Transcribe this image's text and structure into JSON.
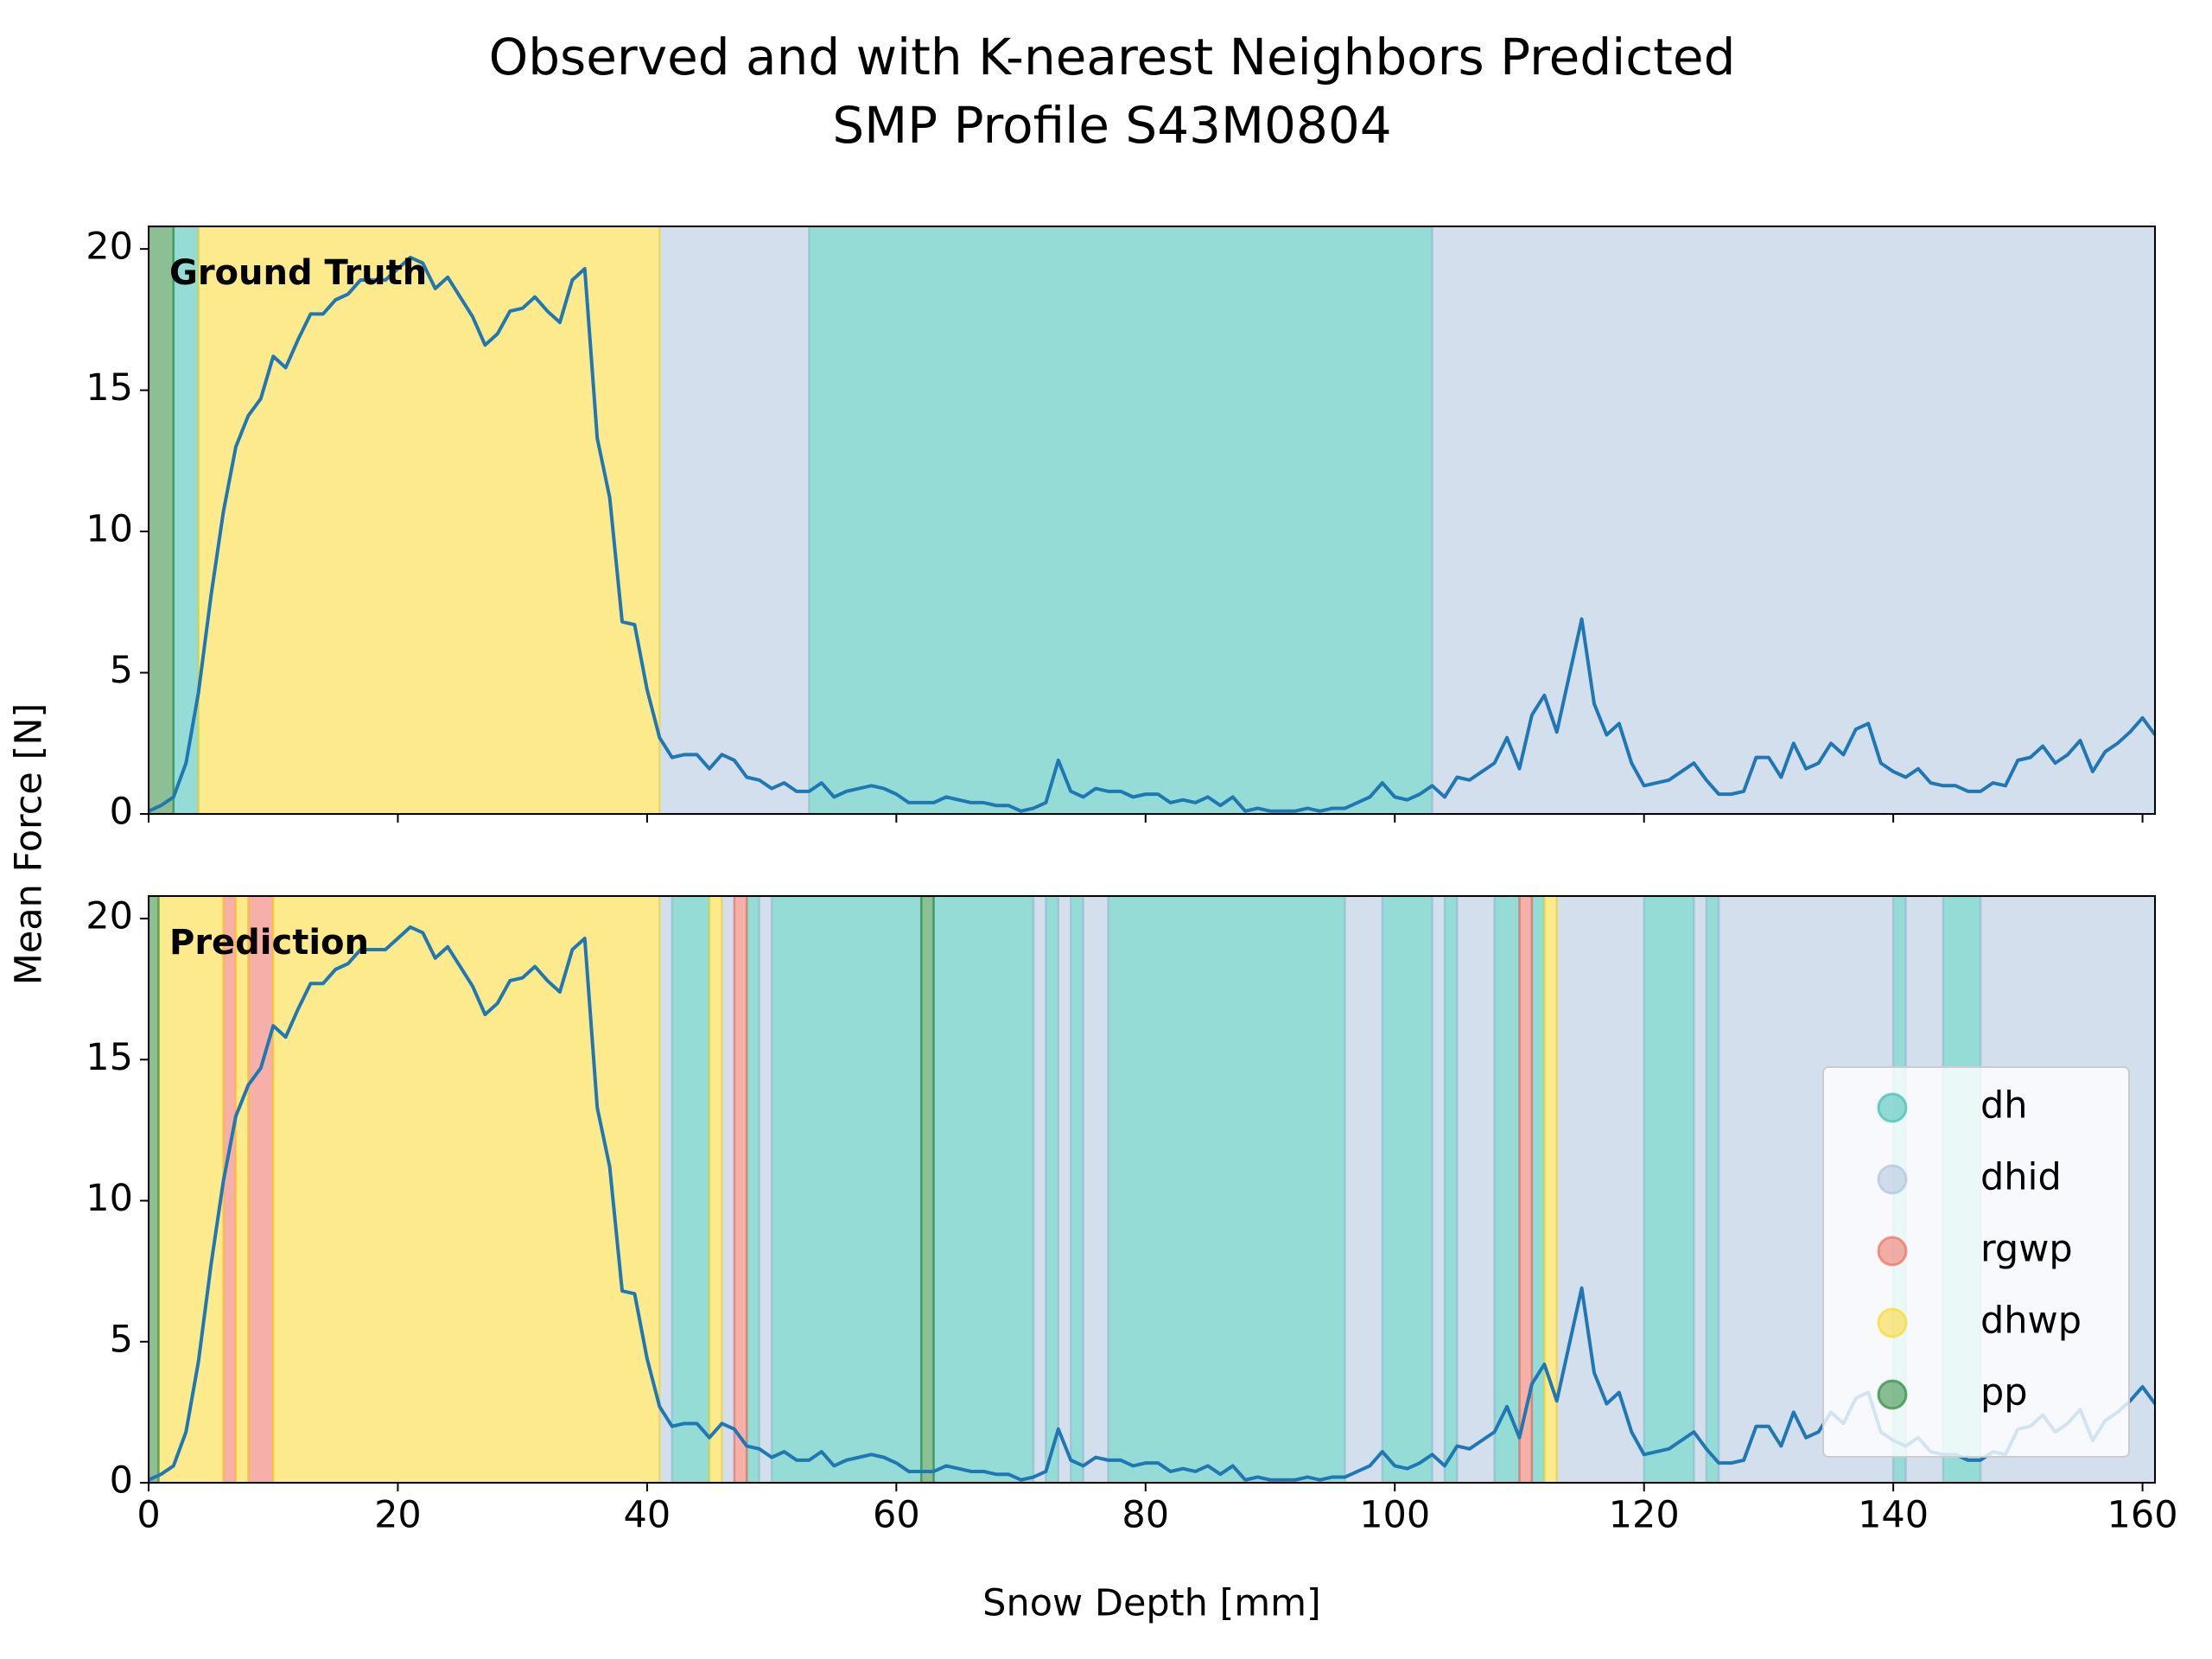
{
  "chart_data": {
    "type": "line",
    "title": [
      "Observed and with K-nearest Neighbors Predicted",
      "SMP Profile S43M0804"
    ],
    "xlabel": "Snow Depth [mm]",
    "ylabel": "Mean Force [N]",
    "xlim": [
      0,
      161
    ],
    "xticks": [
      0,
      20,
      40,
      60,
      80,
      100,
      120,
      140,
      160
    ],
    "ylim": [
      0,
      20.8
    ],
    "yticks": [
      0,
      5,
      10,
      15,
      20
    ],
    "x": [
      0,
      1,
      2,
      3,
      4,
      5,
      6,
      7,
      8,
      9,
      10,
      11,
      12,
      13,
      14,
      15,
      16,
      17,
      18,
      19,
      20,
      21,
      22,
      23,
      24,
      25,
      26,
      27,
      28,
      29,
      30,
      31,
      32,
      33,
      34,
      35,
      36,
      37,
      38,
      39,
      40,
      41,
      42,
      43,
      44,
      45,
      46,
      47,
      48,
      49,
      50,
      51,
      52,
      53,
      54,
      55,
      56,
      57,
      58,
      59,
      60,
      61,
      62,
      63,
      64,
      65,
      66,
      67,
      68,
      69,
      70,
      71,
      72,
      73,
      74,
      75,
      76,
      77,
      78,
      79,
      80,
      81,
      82,
      83,
      84,
      85,
      86,
      87,
      88,
      89,
      90,
      91,
      92,
      93,
      94,
      95,
      96,
      97,
      98,
      99,
      100,
      101,
      102,
      103,
      104,
      105,
      106,
      107,
      108,
      109,
      110,
      111,
      112,
      113,
      114,
      115,
      116,
      117,
      118,
      119,
      120,
      121,
      122,
      123,
      124,
      125,
      126,
      127,
      128,
      129,
      130,
      131,
      132,
      133,
      134,
      135,
      136,
      137,
      138,
      139,
      140,
      141,
      142,
      143,
      144,
      145,
      146,
      147,
      148,
      149,
      150,
      151,
      152,
      153,
      154,
      155,
      156,
      157,
      158,
      159,
      160,
      161
    ],
    "series": [
      {
        "color": "#1f77b4",
        "values": [
          0.1,
          0.3,
          0.6,
          1.8,
          4.3,
          7.7,
          10.7,
          13.0,
          14.1,
          14.7,
          16.2,
          15.8,
          16.8,
          17.7,
          17.7,
          18.2,
          18.4,
          18.9,
          18.9,
          18.9,
          19.3,
          19.7,
          19.5,
          18.6,
          19.0,
          18.3,
          17.6,
          16.6,
          17.0,
          17.8,
          17.9,
          18.3,
          17.8,
          17.4,
          18.9,
          19.3,
          13.3,
          11.2,
          6.8,
          6.7,
          4.4,
          2.7,
          2.0,
          2.1,
          2.1,
          1.6,
          2.1,
          1.9,
          1.3,
          1.2,
          0.9,
          1.1,
          0.8,
          0.8,
          1.1,
          0.6,
          0.8,
          0.9,
          1.0,
          0.9,
          0.7,
          0.4,
          0.4,
          0.4,
          0.6,
          0.5,
          0.4,
          0.4,
          0.3,
          0.3,
          0.1,
          0.2,
          0.4,
          1.9,
          0.8,
          0.6,
          0.9,
          0.8,
          0.8,
          0.6,
          0.7,
          0.7,
          0.4,
          0.5,
          0.4,
          0.6,
          0.3,
          0.6,
          0.1,
          0.2,
          0.1,
          0.1,
          0.1,
          0.2,
          0.1,
          0.2,
          0.2,
          0.4,
          0.6,
          1.1,
          0.6,
          0.5,
          0.7,
          1.0,
          0.6,
          1.3,
          1.2,
          1.5,
          1.8,
          2.7,
          1.6,
          3.5,
          4.2,
          2.9,
          4.9,
          6.9,
          3.9,
          2.8,
          3.2,
          1.8,
          1.0,
          1.1,
          1.2,
          1.5,
          1.8,
          1.2,
          0.7,
          0.7,
          0.8,
          2.0,
          2.0,
          1.3,
          2.5,
          1.6,
          1.8,
          2.5,
          2.1,
          3.0,
          3.2,
          1.8,
          1.5,
          1.3,
          1.6,
          1.1,
          1.0,
          1.0,
          0.8,
          0.8,
          1.1,
          1.0,
          1.9,
          2.0,
          2.4,
          1.8,
          2.1,
          2.6,
          1.5,
          2.2,
          2.5,
          2.9,
          3.4,
          2.8
        ]
      }
    ],
    "classes": [
      {
        "name": "dh",
        "color": "#40c0b4"
      },
      {
        "name": "dhid",
        "color": "#b0c4de"
      },
      {
        "name": "rgwp",
        "color": "#f0705f"
      },
      {
        "name": "dhwp",
        "color": "#fcd82e"
      },
      {
        "name": "pp",
        "color": "#2e8b3c"
      }
    ],
    "legend": "lower right",
    "panels": [
      {
        "label": "Ground Truth",
        "legend": false,
        "spans": [
          [
            [
              2,
              4
            ],
            [
              53,
              103
            ]
          ],
          [
            [
              41,
              53
            ],
            [
              103,
              161
            ]
          ],
          [],
          [
            [
              4,
              41
            ]
          ],
          [
            [
              0,
              2
            ]
          ]
        ]
      },
      {
        "label": "Prediction",
        "legend": true,
        "spans": [
          [
            [
              42,
              45
            ],
            [
              48,
              49
            ],
            [
              50,
              62
            ],
            [
              63,
              71
            ],
            [
              72,
              73
            ],
            [
              74,
              75
            ],
            [
              77,
              96
            ],
            [
              99,
              103
            ],
            [
              104,
              105
            ],
            [
              108,
              110
            ],
            [
              111,
              112
            ],
            [
              120,
              124
            ],
            [
              125,
              126
            ],
            [
              140,
              141
            ],
            [
              144,
              147
            ]
          ],
          [
            [
              41,
              42
            ],
            [
              46,
              47
            ],
            [
              49,
              50
            ],
            [
              71,
              72
            ],
            [
              73,
              74
            ],
            [
              75,
              77
            ],
            [
              96,
              99
            ],
            [
              103,
              104
            ],
            [
              105,
              108
            ],
            [
              113,
              120
            ],
            [
              124,
              125
            ],
            [
              126,
              140
            ],
            [
              141,
              144
            ],
            [
              147,
              161
            ]
          ],
          [
            [
              6,
              7
            ],
            [
              8,
              10
            ],
            [
              47,
              48
            ],
            [
              110,
              111
            ]
          ],
          [
            [
              0.8,
              6
            ],
            [
              7,
              8
            ],
            [
              10,
              41
            ],
            [
              45,
              46
            ],
            [
              112,
              113
            ]
          ],
          [
            [
              0,
              0.8
            ],
            [
              62,
              63
            ]
          ]
        ]
      }
    ]
  }
}
